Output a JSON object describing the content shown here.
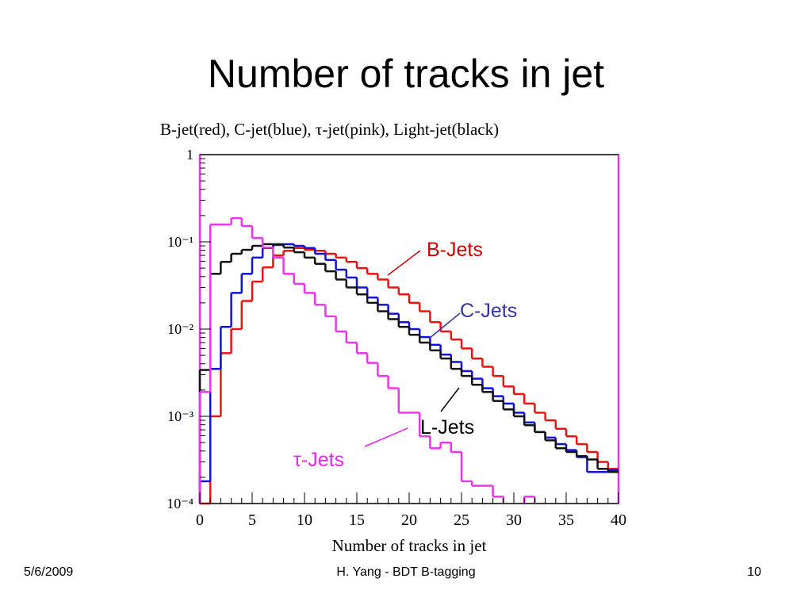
{
  "slide_title": "Number of tracks in jet",
  "chart_data": {
    "type": "histogram",
    "title": "B-jet(red), C-jet(blue), τ-jet(pink), Light-jet(black)",
    "x_label": "Number of tracks in jet",
    "bins": [
      0,
      1,
      2,
      3,
      4,
      5,
      6,
      7,
      8,
      9,
      10,
      11,
      12,
      13,
      14,
      15,
      16,
      17,
      18,
      19,
      20,
      21,
      22,
      23,
      24,
      25,
      26,
      27,
      28,
      29,
      30,
      31,
      32,
      33,
      34,
      35,
      36,
      37,
      38,
      39,
      40
    ],
    "series": [
      {
        "color": "#ee1111",
        "values": [
          0.0001,
          0.001,
          0.0053,
          0.01,
          0.021,
          0.035,
          0.051,
          0.07,
          0.079,
          0.085,
          0.081,
          0.079,
          0.073,
          0.066,
          0.059,
          0.05,
          0.043,
          0.037,
          0.03,
          0.025,
          0.02,
          0.016,
          0.012,
          0.0094,
          0.0076,
          0.006,
          0.0046,
          0.0037,
          0.0029,
          0.0022,
          0.0018,
          0.0014,
          0.0011,
          0.0009,
          0.00072,
          0.00059,
          0.00048,
          0.00039,
          0.0003,
          0.00025
        ]
      },
      {
        "color": "#1111dd",
        "values": [
          0.00018,
          0.0035,
          0.0106,
          0.026,
          0.043,
          0.066,
          0.085,
          0.092,
          0.094,
          0.09,
          0.085,
          0.073,
          0.062,
          0.048,
          0.039,
          0.03,
          0.023,
          0.019,
          0.015,
          0.012,
          0.01,
          0.0081,
          0.0066,
          0.0051,
          0.0042,
          0.0033,
          0.0027,
          0.0021,
          0.0017,
          0.0014,
          0.0011,
          0.00085,
          0.00066,
          0.00057,
          0.00048,
          0.00041,
          0.00034,
          0.00023,
          0.00023,
          0.00024
        ]
      },
      {
        "color": "#111111",
        "values": [
          0.0034,
          0.043,
          0.059,
          0.073,
          0.081,
          0.09,
          0.094,
          0.094,
          0.086,
          0.076,
          0.066,
          0.056,
          0.046,
          0.037,
          0.03,
          0.025,
          0.02,
          0.016,
          0.013,
          0.0106,
          0.0086,
          0.007,
          0.0057,
          0.0046,
          0.0035,
          0.0029,
          0.0023,
          0.0019,
          0.0015,
          0.0012,
          0.001,
          0.00079,
          0.00066,
          0.00053,
          0.00043,
          0.00039,
          0.00035,
          0.00032,
          0.00025,
          0.00023
        ]
      },
      {
        "color": "#ee33ee",
        "values": [
          0.0019,
          0.158,
          0.158,
          0.187,
          0.152,
          0.111,
          0.086,
          0.066,
          0.043,
          0.033,
          0.026,
          0.019,
          0.014,
          0.0094,
          0.007,
          0.0053,
          0.0041,
          0.0029,
          0.0021,
          0.0011,
          0.0011,
          0.00059,
          0.00043,
          0.0005,
          0.00039,
          0.00018,
          0.00016,
          0.00016,
          0.00012,
          null,
          null,
          0.00012,
          null,
          null,
          null,
          null,
          null,
          null,
          null,
          null
        ]
      }
    ],
    "xlim": [
      0,
      40
    ],
    "xticks": [
      0,
      5,
      10,
      15,
      20,
      25,
      30,
      35,
      40
    ],
    "ylim": [
      0.0001,
      1
    ],
    "log_y": true,
    "yticks": [
      {
        "value": 0.0001,
        "label": "10⁻⁴"
      },
      {
        "value": 0.001,
        "label": "10⁻³"
      },
      {
        "value": 0.01,
        "label": "10⁻²"
      },
      {
        "value": 0.1,
        "label": "10⁻¹"
      },
      1
    ],
    "annotations": [
      "B-Jets",
      "C-Jets",
      "L-Jets",
      "τ-Jets"
    ]
  },
  "footer": {
    "date": "5/6/2009",
    "center": "H. Yang - BDT B-tagging",
    "page": "10"
  }
}
